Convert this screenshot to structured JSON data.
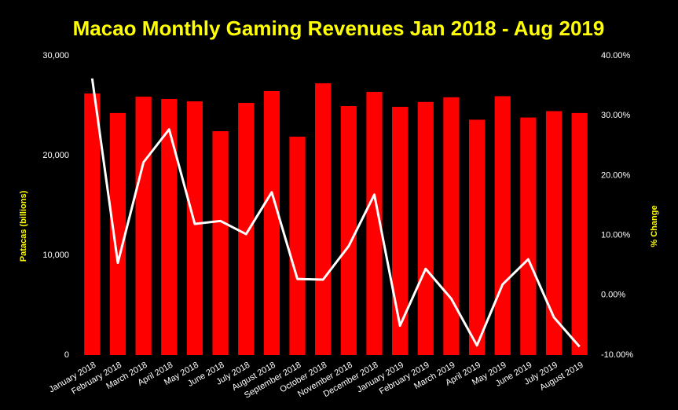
{
  "chart_data": {
    "type": "bar_line",
    "title": "Macao Monthly Gaming Revenues Jan 2018 - Aug 2019",
    "y_label": "Patacas (billions)",
    "y2_label": "% Change",
    "categories": [
      "January 2018",
      "February 2018",
      "March 2018",
      "April 2018",
      "May 2018",
      "June 2018",
      "July 2018",
      "August 2018",
      "September 2018",
      "October 2018",
      "November 2018",
      "December 2018",
      "January 2019",
      "February 2019",
      "March 2019",
      "April 2019",
      "May 2019",
      "June 2019",
      "July 2019",
      "August 2019"
    ],
    "series": [
      {
        "name": "Patacas (billions)",
        "type": "bar",
        "color": "#ff0000",
        "values": [
          26220,
          24260,
          25900,
          25670,
          25430,
          22440,
          25280,
          26460,
          21890,
          27240,
          24960,
          26380,
          24880,
          25370,
          25840,
          23590,
          25950,
          23810,
          24450,
          24260
        ]
      },
      {
        "name": "% Change",
        "type": "line",
        "axis": "y2",
        "color": "#ffffff",
        "values": [
          36.2,
          5.4,
          22.2,
          27.7,
          11.9,
          12.4,
          10.2,
          17.2,
          2.7,
          2.6,
          8.2,
          16.8,
          -5.1,
          4.4,
          -0.6,
          -8.4,
          1.8,
          6.0,
          -3.7,
          -8.6
        ]
      }
    ],
    "ylim": [
      0,
      30000
    ],
    "yticks": [
      0,
      {
        "value": 10000,
        "label": "10,000"
      },
      {
        "value": 20000,
        "label": "20,000"
      },
      {
        "value": 30000,
        "label": "30,000"
      }
    ],
    "y2lim": [
      -10,
      40
    ],
    "y2ticks": [
      {
        "value": -10,
        "label": "-10.00%"
      },
      {
        "value": 0,
        "label": "0.00%"
      },
      {
        "value": 10,
        "label": "10.00%"
      },
      {
        "value": 20,
        "label": "20.00%"
      },
      {
        "value": 30,
        "label": "30.00%"
      },
      {
        "value": 40,
        "label": "40.00%"
      }
    ],
    "grid": false
  }
}
